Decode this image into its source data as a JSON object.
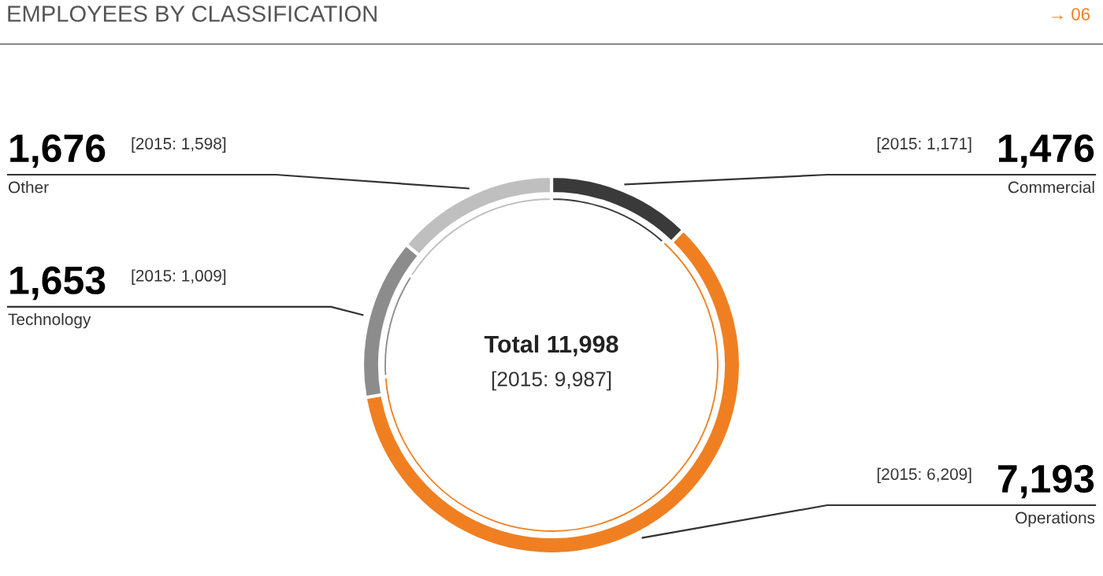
{
  "chart_data": {
    "type": "donut",
    "title": "EMPLOYEES BY CLASSIFICATION",
    "categories": [
      "Commercial",
      "Operations",
      "Technology",
      "Other"
    ],
    "series": [
      {
        "values": [
          1476,
          7193,
          1653,
          1676
        ],
        "value_labels": [
          "1,476",
          "7,193",
          "1,653",
          "1,676"
        ],
        "colors": [
          "#3a3a3a",
          "#f07f22",
          "#8c8c8c",
          "#bfbfbf"
        ]
      },
      {
        "values": [
          11.73,
          62.17,
          10.1,
          16.0
        ],
        "colors": [
          "#3a3a3a",
          "#f07f22",
          "#8c8c8c",
          "#bfbfbf"
        ]
      }
    ],
    "annotations": [
      "Total 11,998",
      "[2015: 9,987]",
      "→ 06",
      "[2015: 1,171]",
      "[2015: 6,209]",
      "[2015: 1,009]",
      "[2015: 1,598]"
    ],
    "legend": false
  }
}
